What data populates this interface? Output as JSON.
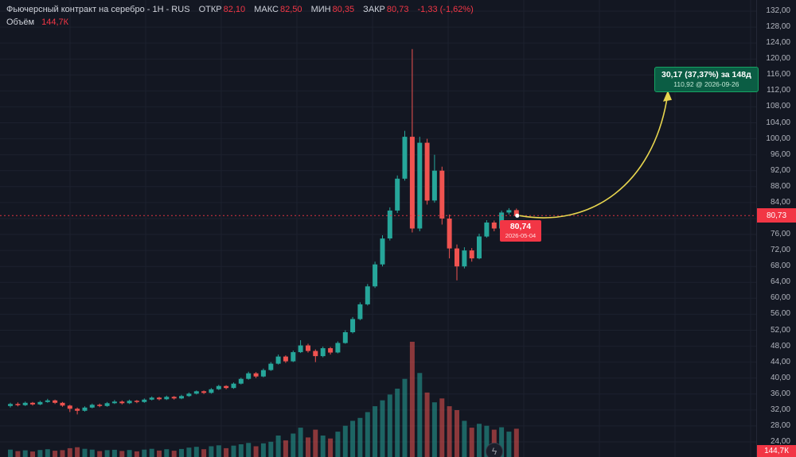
{
  "colors": {
    "background": "#131722",
    "grid": "#1c212e",
    "up": "#26a69a",
    "down": "#ef5350",
    "vol_up": "rgba(38,166,154,0.55)",
    "vol_down": "rgba(239,83,80,0.55)",
    "accent_red": "#f23645",
    "axis_text": "#b2b5be",
    "title_text": "#d1d4dc",
    "arrow": "#e6d44e"
  },
  "legend": {
    "title": "Фьючерсный контракт на серебро - 1Н - RUS",
    "open_label": "ОТКР",
    "open": "82,10",
    "high_label": "МАКС",
    "high": "82,50",
    "low_label": "МИН",
    "low": "80,35",
    "close_label": "ЗАКР",
    "close": "80,73",
    "change": "-1,33 (-1,62%)",
    "volume_label": "Объём",
    "volume_value": "144,7К"
  },
  "callout": {
    "line1": "30,17 (37,37%) за 148д",
    "line2": "110,92 @ 2026-09-26"
  },
  "tooltip": {
    "price": "80,74",
    "date": "2026-05-04"
  },
  "axis": {
    "last_price": "80,73",
    "volume_badge": "144,7К"
  },
  "watermark": {
    "glyph": "ϟ"
  },
  "chart_data": {
    "type": "candlestick",
    "title": "Фьючерсный контракт на серебро",
    "interval": "1Н",
    "exchange": "RUS",
    "last": {
      "open": 82.1,
      "high": 82.5,
      "low": 80.35,
      "close": 80.73,
      "change": -1.33,
      "change_pct": -1.62,
      "volume": "144,7К"
    },
    "projection": {
      "change_abs": 30.17,
      "change_pct": 37.37,
      "days": 148,
      "target_price": 110.92,
      "target_date": "2026-09-26"
    },
    "crosshair": {
      "price": 80.74,
      "date": "2026-05-04"
    },
    "y_axis": {
      "min": 24,
      "max": 132,
      "tick_step": 4,
      "format": "ru-decimal-comma",
      "position": "right"
    },
    "x_axis": {
      "labels_visible": false
    },
    "grid": true,
    "volume_pane": true,
    "columns": [
      "open",
      "high",
      "low",
      "close",
      "volume_k"
    ],
    "candles": [
      [
        33.0,
        33.8,
        32.6,
        33.5,
        38
      ],
      [
        33.5,
        33.9,
        32.9,
        33.2,
        30
      ],
      [
        33.2,
        34.1,
        33.0,
        33.8,
        34
      ],
      [
        33.8,
        34.0,
        33.1,
        33.4,
        28
      ],
      [
        33.4,
        34.3,
        33.2,
        34.0,
        36
      ],
      [
        34.0,
        34.8,
        33.8,
        34.4,
        40
      ],
      [
        34.4,
        34.6,
        33.5,
        33.8,
        32
      ],
      [
        33.8,
        34.0,
        32.8,
        33.1,
        35
      ],
      [
        33.1,
        33.3,
        31.5,
        32.3,
        45
      ],
      [
        32.3,
        32.6,
        30.9,
        31.8,
        50
      ],
      [
        31.8,
        32.9,
        31.6,
        32.6,
        42
      ],
      [
        32.6,
        33.6,
        32.4,
        33.3,
        38
      ],
      [
        33.3,
        33.6,
        32.7,
        33.0,
        30
      ],
      [
        33.0,
        34.0,
        32.8,
        33.7,
        35
      ],
      [
        33.7,
        34.5,
        33.5,
        34.1,
        37
      ],
      [
        34.1,
        34.4,
        33.4,
        33.7,
        31
      ],
      [
        33.7,
        34.6,
        33.5,
        34.3,
        36
      ],
      [
        34.3,
        34.5,
        33.7,
        34.0,
        29
      ],
      [
        34.0,
        34.9,
        33.8,
        34.6,
        38
      ],
      [
        34.6,
        35.4,
        34.4,
        35.1,
        42
      ],
      [
        35.1,
        35.3,
        34.4,
        34.7,
        33
      ],
      [
        34.7,
        35.6,
        34.5,
        35.3,
        40
      ],
      [
        35.3,
        35.5,
        34.6,
        34.9,
        32
      ],
      [
        34.9,
        35.8,
        34.7,
        35.5,
        41
      ],
      [
        35.5,
        36.4,
        35.3,
        36.1,
        48
      ],
      [
        36.1,
        36.9,
        35.9,
        36.7,
        52
      ],
      [
        36.7,
        36.9,
        36.0,
        36.3,
        40
      ],
      [
        36.3,
        37.5,
        36.1,
        37.2,
        55
      ],
      [
        37.2,
        38.3,
        37.0,
        38.0,
        60
      ],
      [
        38.0,
        38.2,
        37.2,
        37.5,
        45
      ],
      [
        37.5,
        38.9,
        37.3,
        38.6,
        58
      ],
      [
        38.6,
        40.1,
        38.4,
        39.8,
        65
      ],
      [
        39.8,
        41.6,
        39.6,
        41.2,
        72
      ],
      [
        41.2,
        41.5,
        40.0,
        40.4,
        55
      ],
      [
        40.4,
        42.4,
        40.2,
        42.0,
        70
      ],
      [
        42.0,
        44.0,
        41.8,
        43.6,
        78
      ],
      [
        43.6,
        45.9,
        43.4,
        45.4,
        110
      ],
      [
        45.4,
        45.7,
        43.8,
        44.2,
        85
      ],
      [
        44.2,
        46.9,
        44.0,
        46.5,
        120
      ],
      [
        46.5,
        49.5,
        46.3,
        48.2,
        150
      ],
      [
        48.2,
        48.6,
        46.4,
        46.8,
        100
      ],
      [
        46.8,
        47.2,
        44.0,
        45.5,
        140
      ],
      [
        45.5,
        47.9,
        45.2,
        47.5,
        110
      ],
      [
        47.5,
        47.8,
        45.9,
        46.4,
        95
      ],
      [
        46.4,
        49.2,
        46.2,
        48.8,
        130
      ],
      [
        48.8,
        52.0,
        48.6,
        51.5,
        160
      ],
      [
        51.5,
        55.3,
        51.2,
        54.8,
        185
      ],
      [
        54.8,
        59.0,
        54.5,
        58.5,
        200
      ],
      [
        58.5,
        63.6,
        58.2,
        63.0,
        230
      ],
      [
        63.0,
        69.2,
        62.6,
        68.5,
        260
      ],
      [
        68.5,
        75.8,
        68.0,
        75.0,
        290
      ],
      [
        75.0,
        82.8,
        74.5,
        82.0,
        320
      ],
      [
        82.0,
        90.8,
        81.4,
        90.0,
        350
      ],
      [
        90.0,
        102.0,
        89.5,
        100.5,
        400
      ],
      [
        100.5,
        122.5,
        76.5,
        77.5,
        590
      ],
      [
        77.5,
        100.5,
        76.8,
        99.0,
        430
      ],
      [
        99.0,
        100.0,
        83.5,
        84.5,
        330
      ],
      [
        84.5,
        96.0,
        84.0,
        92.0,
        280
      ],
      [
        92.0,
        93.0,
        78.5,
        80.0,
        300
      ],
      [
        80.0,
        81.0,
        70.0,
        72.5,
        260
      ],
      [
        72.5,
        73.5,
        64.5,
        68.0,
        240
      ],
      [
        68.0,
        72.8,
        67.5,
        72.0,
        185
      ],
      [
        72.0,
        72.6,
        69.2,
        70.0,
        150
      ],
      [
        70.0,
        76.2,
        69.8,
        75.5,
        170
      ],
      [
        75.5,
        79.6,
        75.2,
        79.0,
        160
      ],
      [
        79.0,
        79.5,
        76.8,
        77.5,
        140
      ],
      [
        77.5,
        82.0,
        77.2,
        81.5,
        152
      ],
      [
        81.5,
        82.6,
        81.0,
        82.1,
        130
      ],
      [
        82.1,
        82.5,
        80.35,
        80.73,
        144.7
      ]
    ]
  }
}
